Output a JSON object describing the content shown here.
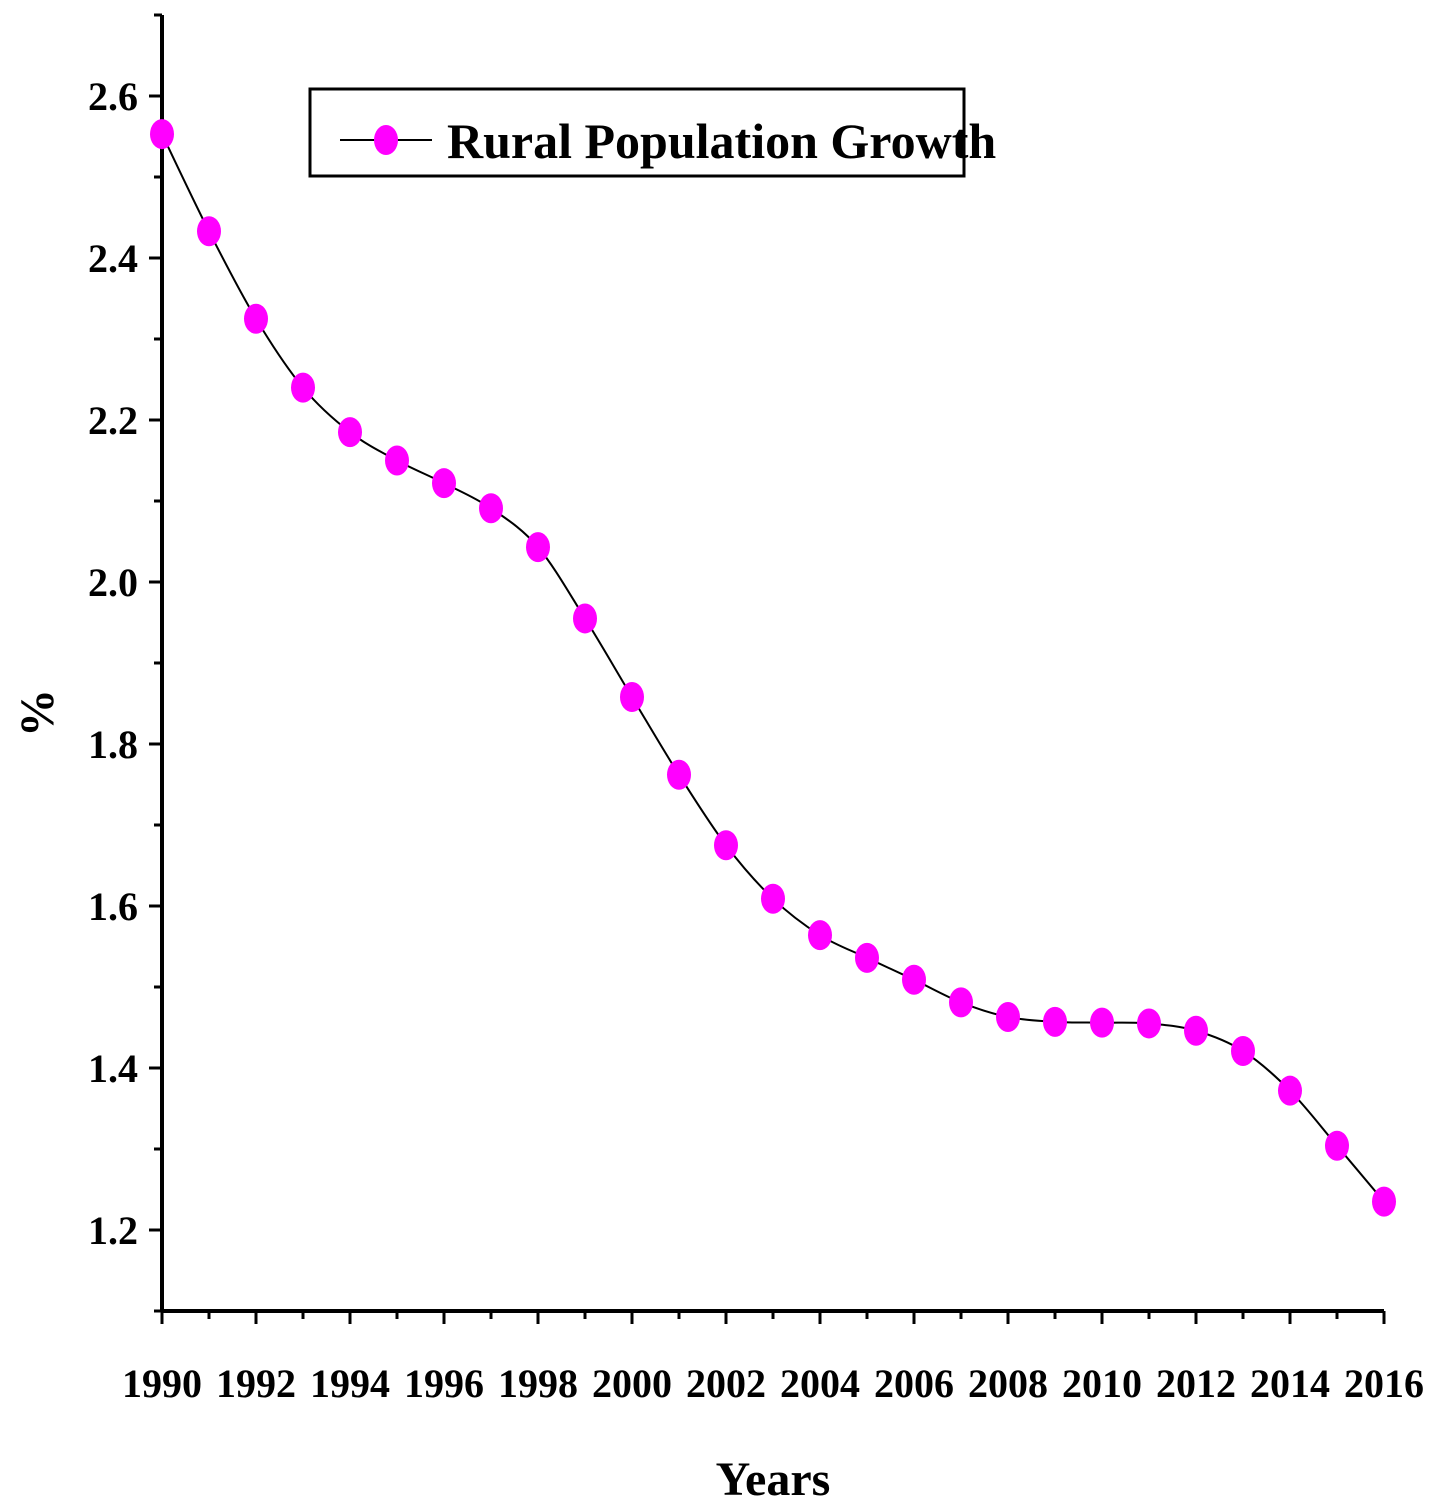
{
  "chart_data": {
    "type": "line",
    "title": "",
    "xlabel": "Years",
    "ylabel": "%",
    "xlim": [
      1990,
      2016
    ],
    "ylim": [
      1.1,
      2.7
    ],
    "x_ticks": [
      1990,
      1992,
      1994,
      1996,
      1998,
      2000,
      2002,
      2004,
      2006,
      2008,
      2010,
      2012,
      2014,
      2016
    ],
    "y_ticks": [
      1.2,
      1.4,
      1.6,
      1.8,
      2.0,
      2.2,
      2.4,
      2.6
    ],
    "x_tick_labels": [
      "1990",
      "1992",
      "1994",
      "1996",
      "1998",
      "2000",
      "2002",
      "2004",
      "2006",
      "2008",
      "2010",
      "2012",
      "2014",
      "2016"
    ],
    "y_tick_labels": [
      "1.2",
      "1.4",
      "1.6",
      "1.8",
      "2.0",
      "2.2",
      "2.4",
      "2.6"
    ],
    "legend_position": "top-left",
    "grid": false,
    "series": [
      {
        "name": "Rural Population Growth",
        "color": "#ff00ff",
        "line_color": "#000000",
        "x": [
          1990,
          1991,
          1992,
          1993,
          1994,
          1995,
          1996,
          1997,
          1998,
          1999,
          2000,
          2001,
          2002,
          2003,
          2004,
          2005,
          2006,
          2007,
          2008,
          2009,
          2010,
          2011,
          2012,
          2013,
          2014,
          2015,
          2016
        ],
        "values": [
          2.553,
          2.433,
          2.325,
          2.24,
          2.185,
          2.15,
          2.122,
          2.091,
          2.043,
          1.955,
          1.858,
          1.762,
          1.675,
          1.609,
          1.564,
          1.536,
          1.509,
          1.481,
          1.463,
          1.457,
          1.456,
          1.455,
          1.446,
          1.421,
          1.372,
          1.304,
          1.235
        ]
      }
    ]
  }
}
